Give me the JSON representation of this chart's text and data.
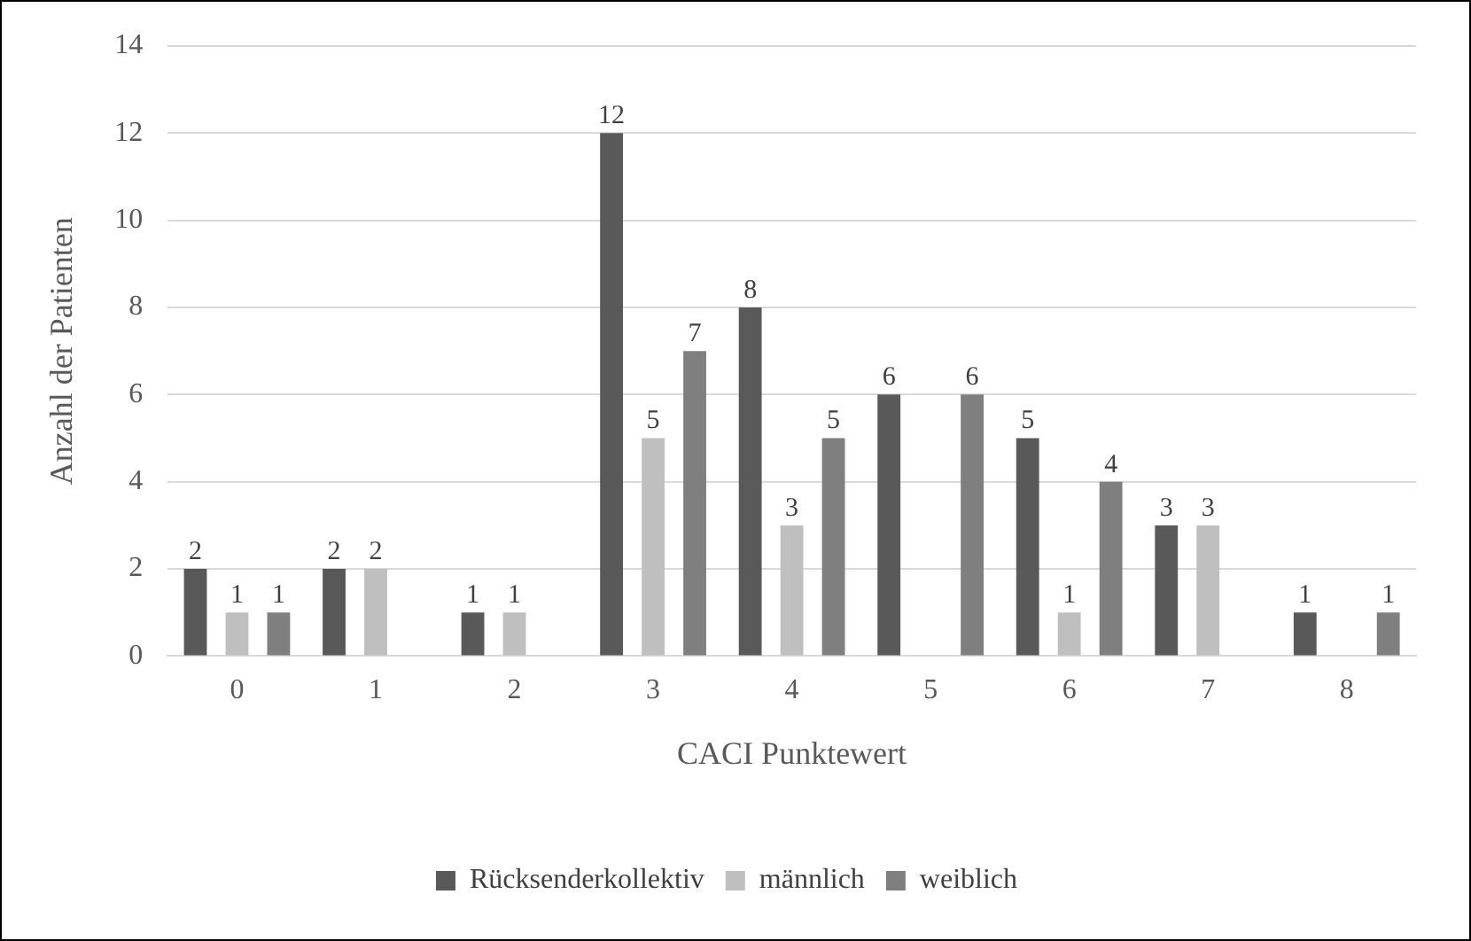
{
  "chart_data": {
    "type": "bar",
    "xlabel": "CACI Punktewert",
    "ylabel": "Anzahl der Patienten",
    "categories": [
      "0",
      "1",
      "2",
      "3",
      "4",
      "5",
      "6",
      "7",
      "8"
    ],
    "series": [
      {
        "name": "Rücksenderkollektiv",
        "color": "#595959",
        "values": [
          2,
          2,
          1,
          12,
          8,
          6,
          5,
          3,
          1
        ]
      },
      {
        "name": "männlich",
        "color": "#bfbfbf",
        "values": [
          1,
          2,
          1,
          5,
          3,
          null,
          1,
          3,
          null
        ]
      },
      {
        "name": "weiblich",
        "color": "#7f7f7f",
        "values": [
          1,
          null,
          null,
          7,
          5,
          6,
          4,
          null,
          1
        ]
      }
    ],
    "ylim": [
      0,
      14
    ],
    "yticks": [
      0,
      2,
      4,
      6,
      8,
      10,
      12,
      14
    ],
    "grid": "y",
    "legend": "bottom",
    "data_labels": true
  }
}
